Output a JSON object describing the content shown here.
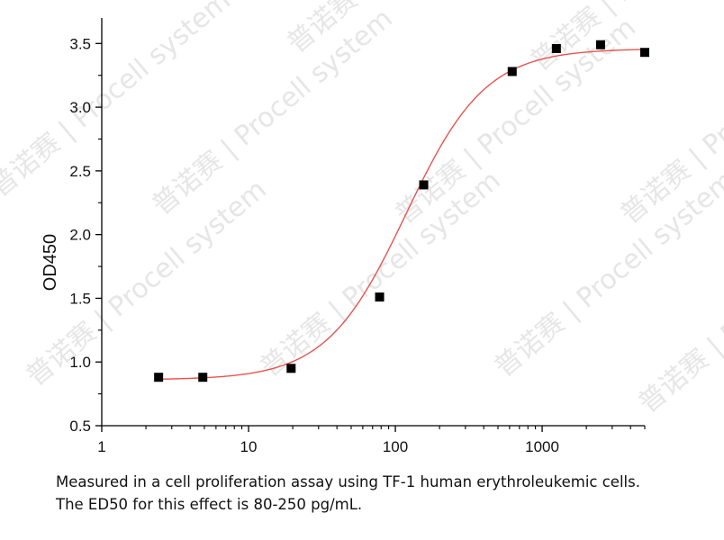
{
  "chart_data": {
    "type": "scatter",
    "xlabel": "",
    "ylabel": "OD450",
    "xscale": "log",
    "xlim": [
      1,
      5000
    ],
    "ylim": [
      0.5,
      3.7
    ],
    "x_ticks": [
      1,
      10,
      100,
      1000
    ],
    "x_tick_labels": [
      "1",
      "10",
      "100",
      "1000"
    ],
    "y_ticks": [
      0.5,
      1.0,
      1.5,
      2.0,
      2.5,
      3.0,
      3.5
    ],
    "y_tick_labels": [
      "0.5",
      "1.0",
      "1.5",
      "2.0",
      "2.5",
      "3.0",
      "3.5"
    ],
    "grid": false,
    "legend": "none",
    "series": [
      {
        "type": "scatter",
        "marker": "square",
        "color": "#000000",
        "x": [
          2.44,
          4.88,
          19.5,
          78.1,
          156,
          625,
          1250,
          2500,
          5000
        ],
        "y": [
          0.88,
          0.88,
          0.95,
          1.51,
          2.39,
          3.28,
          3.46,
          3.49,
          3.43
        ]
      },
      {
        "type": "line",
        "fit": "4PL sigmoid",
        "color": "#e8534f",
        "bottom": 0.86,
        "top": 3.46,
        "ec50": 118,
        "hill": 1.6
      }
    ]
  },
  "caption": {
    "line1": "Measured in a cell proliferation assay using TF-1 human erythroleukemic cells.",
    "line2": "The ED50 for this effect is 80-250 pg/mL."
  },
  "watermark": {
    "brand": "Procell",
    "sub": "system",
    "cn": "普诺赛"
  }
}
